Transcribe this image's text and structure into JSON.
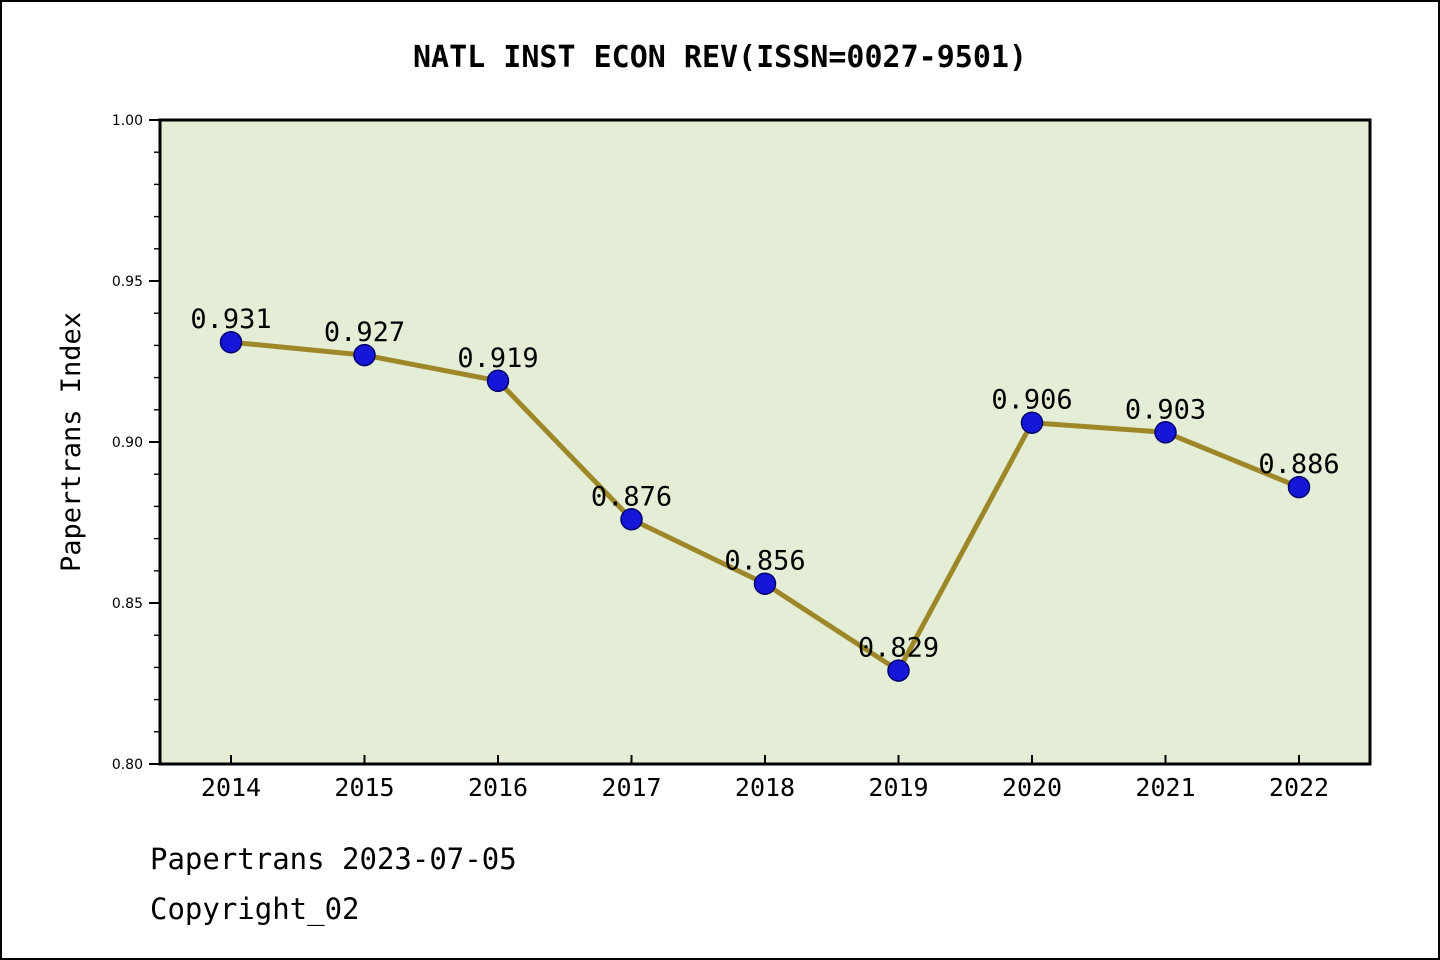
{
  "title": "NATL INST ECON REV(ISSN=0027-9501)",
  "footer": {
    "line1": "Papertrans 2023-07-05",
    "line2": "Copyright_02"
  },
  "chart_data": {
    "type": "line",
    "title": "NATL INST ECON REV(ISSN=0027-9501)",
    "categories": [
      "2014",
      "2015",
      "2016",
      "2017",
      "2018",
      "2019",
      "2020",
      "2021",
      "2022"
    ],
    "values": [
      0.931,
      0.927,
      0.919,
      0.876,
      0.856,
      0.829,
      0.906,
      0.903,
      0.886
    ],
    "point_labels": [
      "0.931",
      "0.927",
      "0.919",
      "0.876",
      "0.856",
      "0.829",
      "0.906",
      "0.903",
      "0.886"
    ],
    "xlabel": "",
    "ylabel": "Papertrans Index",
    "ylim": [
      0.8,
      1.0
    ],
    "yticks": [
      0.8,
      0.85,
      0.9,
      0.95,
      1.0
    ],
    "ytick_labels": [
      "0.80",
      "0.85",
      "0.90",
      "0.95",
      "1.00"
    ],
    "minor_ytick_step": 0.01,
    "grid": false,
    "legend_position": "none",
    "colors": {
      "line": "#9e8729",
      "marker": "#1616d8",
      "marker_edge": "#00006a",
      "plot_bg": "#e4eed7",
      "frame": "#000000",
      "text": "#000000"
    }
  }
}
